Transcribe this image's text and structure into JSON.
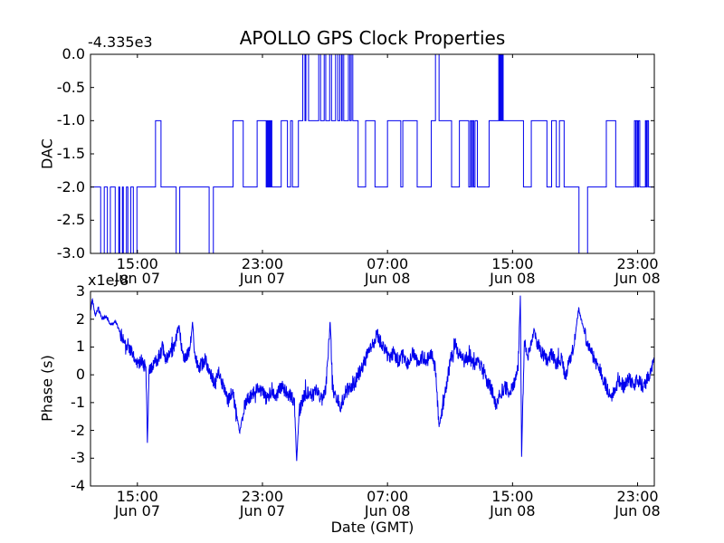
{
  "figure": {
    "title": "APOLLO GPS Clock Properties",
    "xlabel": "Date (GMT)",
    "background_color": "#ffffff",
    "line_color": "#0000ee",
    "axes_color": "#000000"
  },
  "chart_data": [
    {
      "id": "dac",
      "type": "line",
      "style": "steps",
      "ylabel": "DAC",
      "y_offset_text": "-4.335e3",
      "line_color": "#0000ee",
      "grid": false,
      "xlim": [
        12,
        48.07
      ],
      "ylim": [
        -3,
        0
      ],
      "ytick_values": [
        0,
        -0.5,
        -1,
        -1.5,
        -2,
        -2.5,
        -3
      ],
      "ytick_labels": [
        "0.0",
        "-0.5",
        "-1.0",
        "-1.5",
        "-2.0",
        "-2.5",
        "-3.0"
      ],
      "xtick_values": [
        15,
        23,
        31,
        39,
        47
      ],
      "xtick_time_labels": [
        "15:00",
        "23:00",
        "07:00",
        "15:00",
        "23:00"
      ],
      "xtick_date_labels": [
        "Jun 07",
        "Jun 07",
        "Jun 08",
        "Jun 08",
        "Jun 08"
      ],
      "steps": [
        [
          12.0,
          -2
        ],
        [
          12.65,
          -3
        ],
        [
          12.88,
          -2
        ],
        [
          13.08,
          -3
        ],
        [
          13.27,
          -2
        ],
        [
          13.58,
          -3
        ],
        [
          13.81,
          -2
        ],
        [
          13.87,
          -3
        ],
        [
          14.04,
          -2
        ],
        [
          14.1,
          -3
        ],
        [
          14.3,
          -2
        ],
        [
          14.39,
          -3
        ],
        [
          14.58,
          -2
        ],
        [
          14.74,
          -3
        ],
        [
          14.97,
          -2
        ],
        [
          16.16,
          -1
        ],
        [
          16.51,
          -2
        ],
        [
          17.48,
          -3
        ],
        [
          17.71,
          -2
        ],
        [
          19.59,
          -3
        ],
        [
          19.86,
          -2
        ],
        [
          21.12,
          -1
        ],
        [
          21.77,
          -2
        ],
        [
          22.66,
          -1
        ],
        [
          23.24,
          -2
        ],
        [
          23.3,
          -1
        ],
        [
          23.36,
          -2
        ],
        [
          23.42,
          -1
        ],
        [
          23.48,
          -2
        ],
        [
          23.54,
          -1
        ],
        [
          23.6,
          -2
        ],
        [
          24.2,
          -1
        ],
        [
          24.6,
          -2
        ],
        [
          24.8,
          -1
        ],
        [
          24.92,
          -2
        ],
        [
          25.3,
          -1
        ],
        [
          25.58,
          0
        ],
        [
          25.72,
          -1
        ],
        [
          25.78,
          0
        ],
        [
          25.95,
          -1
        ],
        [
          26.6,
          0
        ],
        [
          26.72,
          -1
        ],
        [
          26.95,
          0
        ],
        [
          27.05,
          -1
        ],
        [
          27.3,
          0
        ],
        [
          27.42,
          -1
        ],
        [
          27.68,
          0
        ],
        [
          27.82,
          -1
        ],
        [
          27.95,
          0
        ],
        [
          28.06,
          -1
        ],
        [
          28.1,
          0
        ],
        [
          28.2,
          -1
        ],
        [
          28.5,
          0
        ],
        [
          28.6,
          -1
        ],
        [
          28.68,
          0
        ],
        [
          28.78,
          -1
        ],
        [
          29.12,
          -2
        ],
        [
          29.6,
          -1
        ],
        [
          30.2,
          -2
        ],
        [
          31.0,
          -1
        ],
        [
          31.85,
          -2
        ],
        [
          31.98,
          -1
        ],
        [
          32.9,
          -2
        ],
        [
          33.8,
          -1
        ],
        [
          34.07,
          0
        ],
        [
          34.3,
          -1
        ],
        [
          35.1,
          -2
        ],
        [
          35.6,
          -1
        ],
        [
          36.2,
          -2
        ],
        [
          36.3,
          -1
        ],
        [
          36.38,
          -2
        ],
        [
          36.44,
          -1
        ],
        [
          36.52,
          -2
        ],
        [
          36.6,
          -1
        ],
        [
          36.75,
          -2
        ],
        [
          37.5,
          -1
        ],
        [
          38.12,
          0
        ],
        [
          38.18,
          -1
        ],
        [
          38.22,
          0
        ],
        [
          38.28,
          -1
        ],
        [
          38.34,
          0
        ],
        [
          38.4,
          -1
        ],
        [
          39.7,
          -2
        ],
        [
          40.2,
          -1
        ],
        [
          41.2,
          -2
        ],
        [
          41.5,
          -1
        ],
        [
          41.8,
          -2
        ],
        [
          42.0,
          -1
        ],
        [
          42.3,
          -2
        ],
        [
          43.25,
          -3
        ],
        [
          43.8,
          -2
        ],
        [
          45.0,
          -1
        ],
        [
          45.6,
          -2
        ],
        [
          46.8,
          -1
        ],
        [
          46.88,
          -2
        ],
        [
          46.92,
          -1
        ],
        [
          47.0,
          -2
        ],
        [
          47.06,
          -1
        ],
        [
          47.14,
          -2
        ],
        [
          47.5,
          -1
        ],
        [
          47.56,
          -2
        ],
        [
          47.62,
          -1
        ],
        [
          47.7,
          -2
        ],
        [
          48.07,
          -2
        ]
      ]
    },
    {
      "id": "phase",
      "type": "line",
      "style": "noisy-line",
      "ylabel": "Phase (s)",
      "y_multiplier_text": "x1e-8",
      "xlabel": "Date (GMT)",
      "line_color": "#0000ee",
      "grid": false,
      "xlim": [
        12,
        48.07
      ],
      "ylim": [
        -4,
        3
      ],
      "ytick_values": [
        3,
        2,
        1,
        0,
        -1,
        -2,
        -3,
        -4
      ],
      "ytick_labels": [
        "3",
        "2",
        "1",
        "0",
        "-1",
        "-2",
        "-3",
        "-4"
      ],
      "xtick_values": [
        15,
        23,
        31,
        39,
        47
      ],
      "xtick_time_labels": [
        "15:00",
        "23:00",
        "07:00",
        "15:00",
        "23:00"
      ],
      "xtick_date_labels": [
        "Jun 07",
        "Jun 07",
        "Jun 08",
        "Jun 08",
        "Jun 08"
      ],
      "keypoints": [
        [
          12.0,
          2.3
        ],
        [
          12.12,
          2.72
        ],
        [
          12.3,
          2.15
        ],
        [
          12.5,
          2.4
        ],
        [
          12.75,
          2.0
        ],
        [
          13.0,
          2.1
        ],
        [
          13.3,
          1.8
        ],
        [
          13.6,
          1.92
        ],
        [
          13.9,
          1.5
        ],
        [
          14.2,
          1.2
        ],
        [
          14.5,
          1.0
        ],
        [
          14.75,
          0.6
        ],
        [
          15.0,
          0.4
        ],
        [
          15.3,
          0.55
        ],
        [
          15.55,
          0.15
        ],
        [
          15.64,
          -2.45
        ],
        [
          15.75,
          0.1
        ],
        [
          16.0,
          0.35
        ],
        [
          16.3,
          0.6
        ],
        [
          16.6,
          0.95
        ],
        [
          16.85,
          0.5
        ],
        [
          17.1,
          0.7
        ],
        [
          17.5,
          1.3
        ],
        [
          17.67,
          1.72
        ],
        [
          17.85,
          0.85
        ],
        [
          18.1,
          0.6
        ],
        [
          18.35,
          0.85
        ],
        [
          18.53,
          1.9
        ],
        [
          18.7,
          0.6
        ],
        [
          19.0,
          0.3
        ],
        [
          19.3,
          0.55
        ],
        [
          19.6,
          0.2
        ],
        [
          19.9,
          -0.3
        ],
        [
          20.2,
          0.05
        ],
        [
          20.5,
          -0.45
        ],
        [
          20.8,
          -0.95
        ],
        [
          21.1,
          -0.6
        ],
        [
          21.4,
          -1.6
        ],
        [
          21.55,
          -2.1
        ],
        [
          21.8,
          -1.2
        ],
        [
          22.1,
          -0.85
        ],
        [
          22.4,
          -0.7
        ],
        [
          22.7,
          -0.45
        ],
        [
          23.0,
          -0.6
        ],
        [
          23.3,
          -0.9
        ],
        [
          23.6,
          -0.5
        ],
        [
          23.9,
          -0.8
        ],
        [
          24.2,
          -0.4
        ],
        [
          24.5,
          -0.65
        ],
        [
          24.8,
          -0.75
        ],
        [
          25.05,
          -1.05
        ],
        [
          25.19,
          -3.1
        ],
        [
          25.35,
          -1.3
        ],
        [
          25.6,
          -0.85
        ],
        [
          25.9,
          -0.6
        ],
        [
          26.2,
          -0.75
        ],
        [
          26.5,
          -0.5
        ],
        [
          26.8,
          -0.95
        ],
        [
          27.05,
          -0.55
        ],
        [
          27.33,
          1.9
        ],
        [
          27.5,
          -0.55
        ],
        [
          27.75,
          -0.8
        ],
        [
          28.0,
          -1.15
        ],
        [
          28.3,
          -0.65
        ],
        [
          28.6,
          -0.45
        ],
        [
          28.9,
          -0.3
        ],
        [
          29.2,
          0.1
        ],
        [
          29.5,
          0.45
        ],
        [
          29.8,
          0.8
        ],
        [
          30.1,
          1.1
        ],
        [
          30.3,
          1.55
        ],
        [
          30.55,
          1.2
        ],
        [
          30.8,
          0.9
        ],
        [
          31.1,
          0.6
        ],
        [
          31.4,
          0.8
        ],
        [
          31.7,
          0.5
        ],
        [
          32.0,
          0.68
        ],
        [
          32.3,
          0.42
        ],
        [
          32.6,
          0.8
        ],
        [
          32.9,
          0.5
        ],
        [
          33.2,
          0.65
        ],
        [
          33.5,
          0.5
        ],
        [
          33.8,
          0.72
        ],
        [
          34.05,
          0.3
        ],
        [
          34.3,
          -1.85
        ],
        [
          34.55,
          -1.1
        ],
        [
          34.8,
          -0.3
        ],
        [
          35.05,
          0.6
        ],
        [
          35.3,
          1.15
        ],
        [
          35.6,
          0.7
        ],
        [
          35.9,
          0.5
        ],
        [
          36.2,
          0.65
        ],
        [
          36.5,
          0.35
        ],
        [
          36.8,
          0.5
        ],
        [
          37.1,
          0.1
        ],
        [
          37.4,
          -0.25
        ],
        [
          37.7,
          -0.6
        ],
        [
          37.95,
          -1.2
        ],
        [
          38.2,
          -0.7
        ],
        [
          38.5,
          -0.45
        ],
        [
          38.8,
          -0.6
        ],
        [
          39.1,
          -0.3
        ],
        [
          39.35,
          0.2
        ],
        [
          39.5,
          2.85
        ],
        [
          39.58,
          -2.95
        ],
        [
          39.75,
          1.2
        ],
        [
          39.95,
          0.55
        ],
        [
          40.15,
          1.1
        ],
        [
          40.38,
          1.65
        ],
        [
          40.6,
          1.1
        ],
        [
          40.9,
          0.8
        ],
        [
          41.2,
          0.5
        ],
        [
          41.5,
          0.78
        ],
        [
          41.8,
          0.38
        ],
        [
          42.1,
          0.6
        ],
        [
          42.4,
          -0.05
        ],
        [
          42.65,
          0.5
        ],
        [
          42.9,
          1.0
        ],
        [
          43.23,
          2.38
        ],
        [
          43.5,
          1.75
        ],
        [
          43.75,
          1.2
        ],
        [
          44.05,
          0.8
        ],
        [
          44.35,
          0.4
        ],
        [
          44.65,
          0.1
        ],
        [
          44.95,
          -0.35
        ],
        [
          45.25,
          -0.85
        ],
        [
          45.55,
          -0.5
        ],
        [
          45.85,
          -0.2
        ],
        [
          46.15,
          -0.45
        ],
        [
          46.45,
          -0.1
        ],
        [
          46.75,
          -0.4
        ],
        [
          47.05,
          -0.15
        ],
        [
          47.35,
          -0.45
        ],
        [
          47.65,
          -0.15
        ],
        [
          47.85,
          0.1
        ],
        [
          48.07,
          0.55
        ]
      ],
      "noise": {
        "amplitude": 0.26,
        "seed": 42,
        "dt": 0.018
      }
    }
  ]
}
